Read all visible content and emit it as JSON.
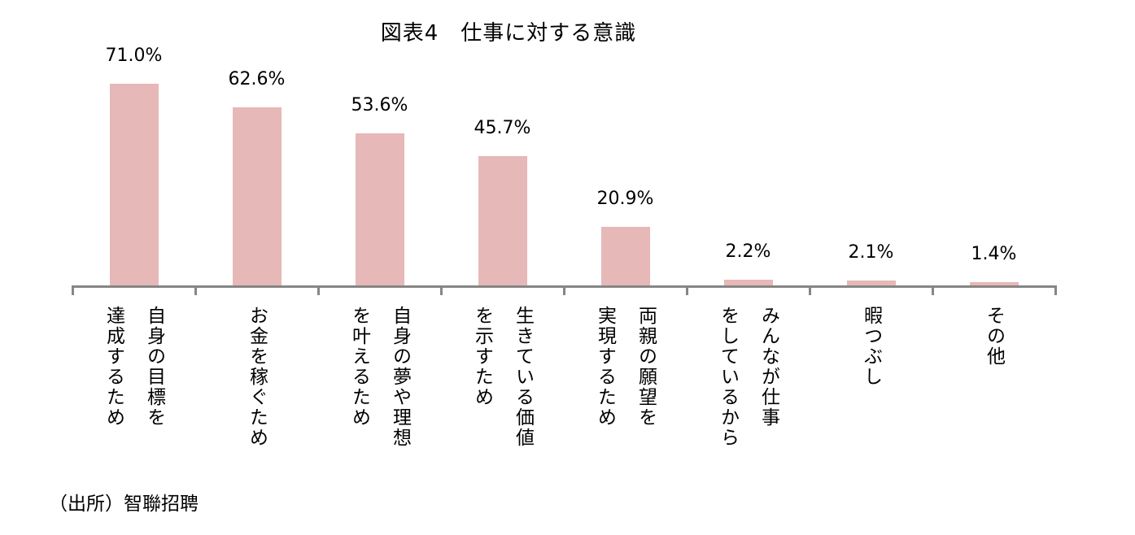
{
  "chart_data": {
    "type": "bar",
    "title": "図表4　仕事に対する意識",
    "categories": [
      "自身の目標を達成するため",
      "お金を稼ぐため",
      "自身の夢や理想を叶えるため",
      "生きている価値を示すため",
      "両親の願望を実現するため",
      "みんなが仕事をしているから",
      "暇つぶし",
      "その他"
    ],
    "category_lines": [
      [
        "自身の目標を",
        "達成するため"
      ],
      [
        "お金を稼ぐため"
      ],
      [
        "自身の夢や理想",
        "を叶えるため"
      ],
      [
        "生きている価値",
        "を示すため"
      ],
      [
        "両親の願望を",
        "実現するため"
      ],
      [
        "みんなが仕事",
        "をしているから"
      ],
      [
        "暇つぶし"
      ],
      [
        "その他"
      ]
    ],
    "values": [
      71.0,
      62.6,
      53.6,
      45.7,
      20.9,
      2.2,
      2.1,
      1.4
    ],
    "labels": [
      "71.0%",
      "62.6%",
      "53.6%",
      "45.7%",
      "20.9%",
      "2.2%",
      "2.1%",
      "1.4%"
    ],
    "xlabel": "",
    "ylabel": "",
    "ylim": [
      0,
      80
    ],
    "grid": false,
    "legend": "none",
    "bar_color": "#E6B8B7",
    "axis_color": "#868686"
  },
  "source": "（出所）智聯招聘"
}
